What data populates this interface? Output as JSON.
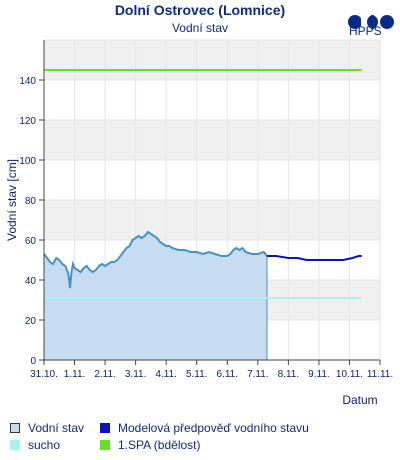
{
  "header": {
    "title": "Dolní Ostrovec (Lomnice)",
    "subtitle": "Vodní stav",
    "logo_text": "HPPS"
  },
  "chart_data": {
    "type": "line",
    "title": "Dolní Ostrovec (Lomnice)",
    "subtitle": "Vodní stav",
    "xlabel": "Datum",
    "ylabel": "Vodní stav [cm]",
    "xlim": [
      0,
      11
    ],
    "ylim": [
      0,
      160
    ],
    "yticks": [
      0,
      20,
      40,
      60,
      80,
      100,
      120,
      140
    ],
    "xtick_labels": [
      "31.10.",
      "1.11.",
      "2.11.",
      "3.11.",
      "4.11.",
      "5.11.",
      "6.11.",
      "7.11.",
      "8.11.",
      "9.11.",
      "10.11.",
      "11.11."
    ],
    "grid": true,
    "legend_position": "bottom",
    "series": [
      {
        "name": "Vodní stav",
        "style": "area",
        "color": "#4a90c8",
        "fill": "#c6dcf0",
        "x": [
          0,
          0.1,
          0.2,
          0.3,
          0.4,
          0.5,
          0.6,
          0.7,
          0.8,
          0.85,
          0.9,
          0.95,
          1.0,
          1.1,
          1.2,
          1.3,
          1.4,
          1.5,
          1.6,
          1.7,
          1.8,
          1.9,
          2.0,
          2.1,
          2.2,
          2.3,
          2.4,
          2.5,
          2.6,
          2.7,
          2.8,
          2.9,
          3.0,
          3.1,
          3.2,
          3.3,
          3.4,
          3.5,
          3.6,
          3.7,
          3.8,
          3.9,
          4.0,
          4.1,
          4.2,
          4.4,
          4.6,
          4.8,
          5.0,
          5.2,
          5.4,
          5.6,
          5.8,
          6.0,
          6.1,
          6.2,
          6.3,
          6.4,
          6.5,
          6.6,
          6.8,
          7.0,
          7.2,
          7.3
        ],
        "y": [
          53,
          51,
          49,
          48,
          51,
          50,
          48,
          47,
          43,
          36,
          44,
          48,
          46,
          45,
          44,
          46,
          47,
          45,
          44,
          45,
          47,
          48,
          47,
          48,
          49,
          49,
          50,
          52,
          54,
          56,
          57,
          60,
          61,
          62,
          61,
          62,
          64,
          63,
          62,
          61,
          59,
          58,
          57,
          57,
          56,
          55,
          55,
          54,
          54,
          53,
          54,
          53,
          52,
          52,
          53,
          55,
          56,
          55,
          56,
          54,
          53,
          53,
          54,
          52
        ]
      },
      {
        "name": "Modelová předpověď vodního stavu",
        "style": "line",
        "color": "#0a14b4",
        "x": [
          7.3,
          7.6,
          8.0,
          8.3,
          8.6,
          9.0,
          9.4,
          9.8,
          10.1,
          10.3,
          10.4
        ],
        "y": [
          52,
          52,
          51,
          51,
          50,
          50,
          50,
          50,
          51,
          52,
          52
        ]
      },
      {
        "name": "sucho",
        "style": "line",
        "color": "#a8f4f0",
        "x": [
          0,
          10.4
        ],
        "y": [
          31,
          31
        ]
      },
      {
        "name": "1.SPA (bdělost)",
        "style": "line",
        "color": "#66e022",
        "x": [
          0,
          10.4
        ],
        "y": [
          145,
          145
        ]
      }
    ]
  },
  "legend": [
    {
      "label": "Vodní stav",
      "swatch_fill": "#c6dcf0",
      "swatch_border": "#333333"
    },
    {
      "label": "Modelová předpověď vodního stavu",
      "swatch_fill": "#0a14b4",
      "swatch_border": "#0a14b4"
    },
    {
      "label": "sucho",
      "swatch_fill": "#a8f4f0",
      "swatch_border": "#a8f4f0"
    },
    {
      "label": "1.SPA (bdělost)",
      "swatch_fill": "#66e022",
      "swatch_border": "#66e022"
    }
  ]
}
